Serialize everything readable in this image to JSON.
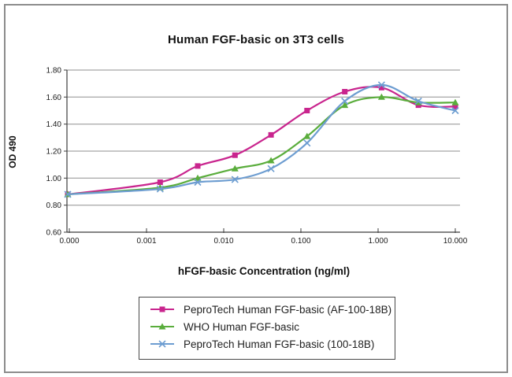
{
  "chart_data": {
    "type": "line",
    "title": "Human FGF-basic on 3T3 cells",
    "xlabel": "hFGF-basic Concentration (ng/ml)",
    "ylabel": "OD 490",
    "x_scale": "log",
    "grid": true,
    "legend_position": "bottom",
    "ylim": [
      0.6,
      1.8
    ],
    "y_tick_labels": [
      "0.60",
      "0.80",
      "1.00",
      "1.20",
      "1.40",
      "1.60",
      "1.80"
    ],
    "x_tick_values": [
      0.0001,
      0.001,
      0.01,
      0.1,
      1,
      10
    ],
    "x_tick_labels": [
      "0.000",
      "0.001",
      "0.010",
      "0.100",
      "1.000",
      "10.000"
    ],
    "x": [
      0,
      0.0015,
      0.0046,
      0.014,
      0.041,
      0.12,
      0.37,
      1.11,
      3.33,
      10
    ],
    "series": [
      {
        "name": "PeproTech Human FGF-basic (AF-100-18B)",
        "color": "#c9258e",
        "marker": "square",
        "values": [
          0.88,
          0.97,
          1.09,
          1.17,
          1.32,
          1.5,
          1.64,
          1.67,
          1.54,
          1.53
        ]
      },
      {
        "name": "WHO Human FGF-basic",
        "color": "#5aad3c",
        "marker": "triangle",
        "values": [
          0.88,
          0.93,
          1.0,
          1.07,
          1.13,
          1.31,
          1.54,
          1.6,
          1.56,
          1.56
        ]
      },
      {
        "name": "PeproTech Human FGF-basic (100-18B)",
        "color": "#6d9dd1",
        "marker": "x",
        "values": [
          0.88,
          0.92,
          0.97,
          0.99,
          1.07,
          1.26,
          1.57,
          1.69,
          1.57,
          1.5
        ]
      }
    ]
  }
}
